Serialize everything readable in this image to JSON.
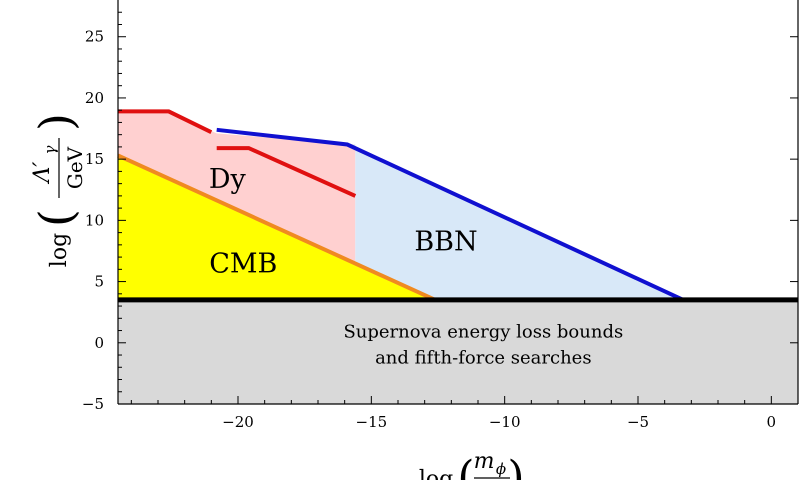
{
  "chart_data": {
    "type": "area",
    "title": "",
    "xlabel": {
      "prefix": "log",
      "fraction_top": "m",
      "fraction_top_sub": "ϕ"
    },
    "ylabel": {
      "prefix": "log",
      "fraction_top": "Λ′",
      "fraction_top_sub": "γ",
      "fraction_bottom": "GeV"
    },
    "xlim": [
      -24.5,
      1.0
    ],
    "ylim": [
      -5,
      28
    ],
    "xticks": [
      -20,
      -15,
      -10,
      -5,
      0
    ],
    "xtick_labels": [
      "−20",
      "−15",
      "−10",
      "−5",
      "0"
    ],
    "yticks": [
      -5,
      0,
      5,
      10,
      15,
      20,
      25
    ],
    "ytick_labels": [
      "−5",
      "0",
      "5",
      "10",
      "15",
      "20",
      "25"
    ],
    "grid": false,
    "regions": [
      {
        "name": "CMB",
        "label": "CMB",
        "color": "#ffff00",
        "label_at": [
          -19.8,
          6.5
        ],
        "polygon": [
          [
            -24.5,
            3.5
          ],
          [
            -24.5,
            15.3
          ],
          [
            -12.6,
            3.5
          ]
        ]
      },
      {
        "name": "Dy",
        "label": "Dy",
        "color": "#ffd0d0",
        "label_at": [
          -20.4,
          13.4
        ],
        "polygon": [
          [
            -24.5,
            15.3
          ],
          [
            -24.5,
            18.9
          ],
          [
            -22.6,
            18.9
          ],
          [
            -20.8,
            17.1
          ],
          [
            -15.6,
            16.2
          ],
          [
            -15.6,
            6.5
          ]
        ]
      },
      {
        "name": "BBN",
        "label": "BBN",
        "color": "#d8e8f8",
        "label_at": [
          -12.2,
          8.3
        ],
        "polygon": [
          [
            -15.6,
            16.2
          ],
          [
            -15.9,
            16.2
          ],
          [
            -3.3,
            3.5
          ],
          [
            -12.6,
            3.5
          ],
          [
            -15.6,
            6.5
          ]
        ]
      },
      {
        "name": "Supernova",
        "label": [
          "Supernova energy loss bounds",
          "and fifth-force searches"
        ],
        "color": "#d9d9d9",
        "label_at": [
          -10.8,
          -0.1
        ],
        "polygon": [
          [
            -24.5,
            -5
          ],
          [
            -24.5,
            3.5
          ],
          [
            1.0,
            3.5
          ],
          [
            1.0,
            -5
          ]
        ]
      }
    ],
    "lines": [
      {
        "name": "CMB bound",
        "color": "#f08a20",
        "points": [
          [
            -24.5,
            15.3
          ],
          [
            -12.6,
            3.5
          ]
        ]
      },
      {
        "name": "Dy upper bound",
        "color": "#e01010",
        "points": [
          [
            -24.5,
            18.9
          ],
          [
            -22.6,
            18.9
          ],
          [
            -21.0,
            17.2
          ]
        ]
      },
      {
        "name": "Dy second bound",
        "color": "#e01010",
        "points": [
          [
            -20.8,
            15.9
          ],
          [
            -19.6,
            15.9
          ],
          [
            -15.6,
            12.0
          ]
        ]
      },
      {
        "name": "BBN bound",
        "color": "#1010d0",
        "points": [
          [
            -20.8,
            17.4
          ],
          [
            -15.9,
            16.2
          ],
          [
            -3.3,
            3.5
          ]
        ]
      },
      {
        "name": "Supernova bound",
        "color": "#000000",
        "points": [
          [
            -24.5,
            3.5
          ],
          [
            1.0,
            3.5
          ]
        ]
      }
    ]
  }
}
